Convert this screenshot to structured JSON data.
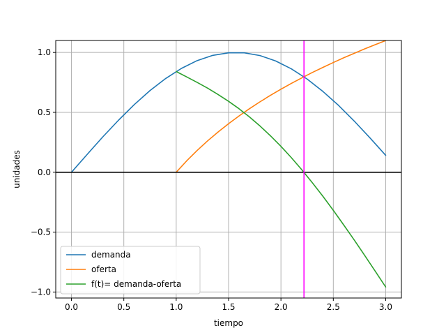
{
  "chart_data": {
    "type": "line",
    "title": "",
    "xlabel": "tiempo",
    "ylabel": "unidades",
    "xlim": [
      -0.15,
      3.15
    ],
    "ylim": [
      -1.05,
      1.1
    ],
    "x_ticks": [
      0.0,
      0.5,
      1.0,
      1.5,
      2.0,
      2.5,
      3.0
    ],
    "x_tick_labels": [
      "0.0",
      "0.5",
      "1.0",
      "1.5",
      "2.0",
      "2.5",
      "3.0"
    ],
    "y_ticks": [
      -1.0,
      -0.5,
      0.0,
      0.5,
      1.0
    ],
    "y_tick_labels": [
      "−1.0",
      "−0.5",
      "0.0",
      "0.5",
      "1.0"
    ],
    "grid": true,
    "legend_position": "lower-left",
    "series": [
      {
        "name": "demanda",
        "color": "#1f77b4",
        "x": [
          0,
          0.15,
          0.3,
          0.45,
          0.6,
          0.75,
          0.9,
          1.05,
          1.2,
          1.35,
          1.5,
          1.65,
          1.8,
          1.95,
          2.1,
          2.25,
          2.4,
          2.55,
          2.7,
          2.85,
          3.0
        ],
        "values": [
          0.0,
          0.149,
          0.296,
          0.435,
          0.565,
          0.682,
          0.783,
          0.867,
          0.932,
          0.976,
          0.997,
          0.997,
          0.974,
          0.929,
          0.863,
          0.778,
          0.675,
          0.558,
          0.427,
          0.287,
          0.141
        ]
      },
      {
        "name": "oferta",
        "color": "#ff7f0e",
        "x": [
          1.0,
          1.1,
          1.2,
          1.3,
          1.4,
          1.5,
          1.6,
          1.7,
          1.8,
          1.9,
          2.0,
          2.1,
          2.2,
          2.3,
          2.4,
          2.5,
          2.6,
          2.7,
          2.8,
          2.9,
          3.0
        ],
        "values": [
          0.0,
          0.095,
          0.182,
          0.262,
          0.336,
          0.405,
          0.47,
          0.531,
          0.588,
          0.642,
          0.693,
          0.742,
          0.788,
          0.833,
          0.875,
          0.916,
          0.956,
          0.993,
          1.03,
          1.065,
          1.099
        ]
      },
      {
        "name": "f(t)= demanda-oferta",
        "color": "#2ca02c",
        "x": [
          1.0,
          1.1,
          1.2,
          1.3,
          1.4,
          1.5,
          1.6,
          1.7,
          1.8,
          1.9,
          2.0,
          2.1,
          2.2,
          2.3,
          2.4,
          2.5,
          2.6,
          2.7,
          2.8,
          2.9,
          3.0
        ],
        "values": [
          0.841,
          0.796,
          0.75,
          0.702,
          0.649,
          0.592,
          0.53,
          0.461,
          0.386,
          0.304,
          0.216,
          0.121,
          0.02,
          -0.088,
          -0.2,
          -0.318,
          -0.441,
          -0.566,
          -0.695,
          -0.826,
          -0.958
        ]
      }
    ],
    "reference_lines": {
      "horizontal_y": 0.0,
      "horizontal_color": "#000000",
      "vertical_x": 2.22,
      "vertical_color": "#ff00ff"
    }
  }
}
